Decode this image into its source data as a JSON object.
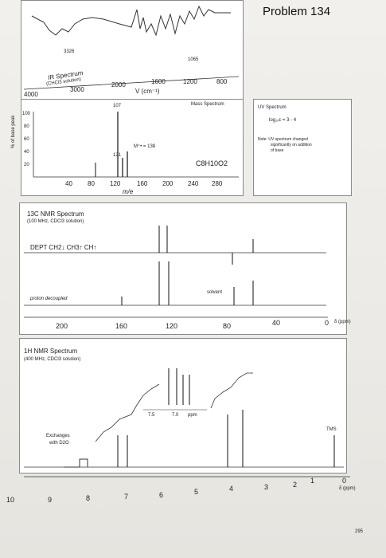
{
  "problem_title": "Problem 134",
  "ir": {
    "title": "IR Spectrum",
    "subtitle": "(CHCl3 solution)",
    "peak_labels": [
      "3326",
      "1065"
    ],
    "axis_ticks": [
      "4000",
      "3000",
      "2000",
      "1600",
      "1200",
      "800"
    ],
    "axis_label": "V (cm⁻¹)"
  },
  "ms": {
    "title": "Mass Spectrum",
    "ylabel": "% of base peak",
    "yticks": [
      "100",
      "80",
      "60",
      "40",
      "20"
    ],
    "xticks": [
      "40",
      "80",
      "120",
      "160",
      "200",
      "240",
      "280"
    ],
    "xlabel": "m/e",
    "peak_labels": [
      "107",
      "121"
    ],
    "molecular_ion": "M⁺• = 138",
    "formula": "C8H10O2"
  },
  "uv": {
    "title": "UV Spectrum",
    "value": "log₁₀ε = 3 - 4",
    "note_line1": "Note: UV spectrum changed",
    "note_line2": "significantly on addition",
    "note_line3": "of base"
  },
  "c13": {
    "title": "13C NMR Spectrum",
    "subtitle": "(100 MHz, CDCl3 solution)",
    "dept_label": "DEPT  CH2↓  CH3↑  CH↑",
    "decoupled_label": "proton decoupled",
    "solvent_label": "solvent",
    "axis_ticks": [
      "200",
      "160",
      "120",
      "80",
      "40",
      "0"
    ],
    "axis_unit": "δ (ppm)"
  },
  "h1": {
    "title": "1H NMR Spectrum",
    "subtitle": "(400 MHz, CDCl3 solution)",
    "exchange_label_1": "Exchanges",
    "exchange_label_2": "with D2O",
    "inset_ticks": [
      "7.5",
      "7.0",
      "ppm"
    ],
    "tms_label": "TMS",
    "axis_ticks": [
      "10",
      "9",
      "8",
      "7",
      "6",
      "5",
      "4",
      "3",
      "2",
      "1",
      "0"
    ],
    "axis_unit": "δ (ppm)"
  },
  "page_number": "295"
}
